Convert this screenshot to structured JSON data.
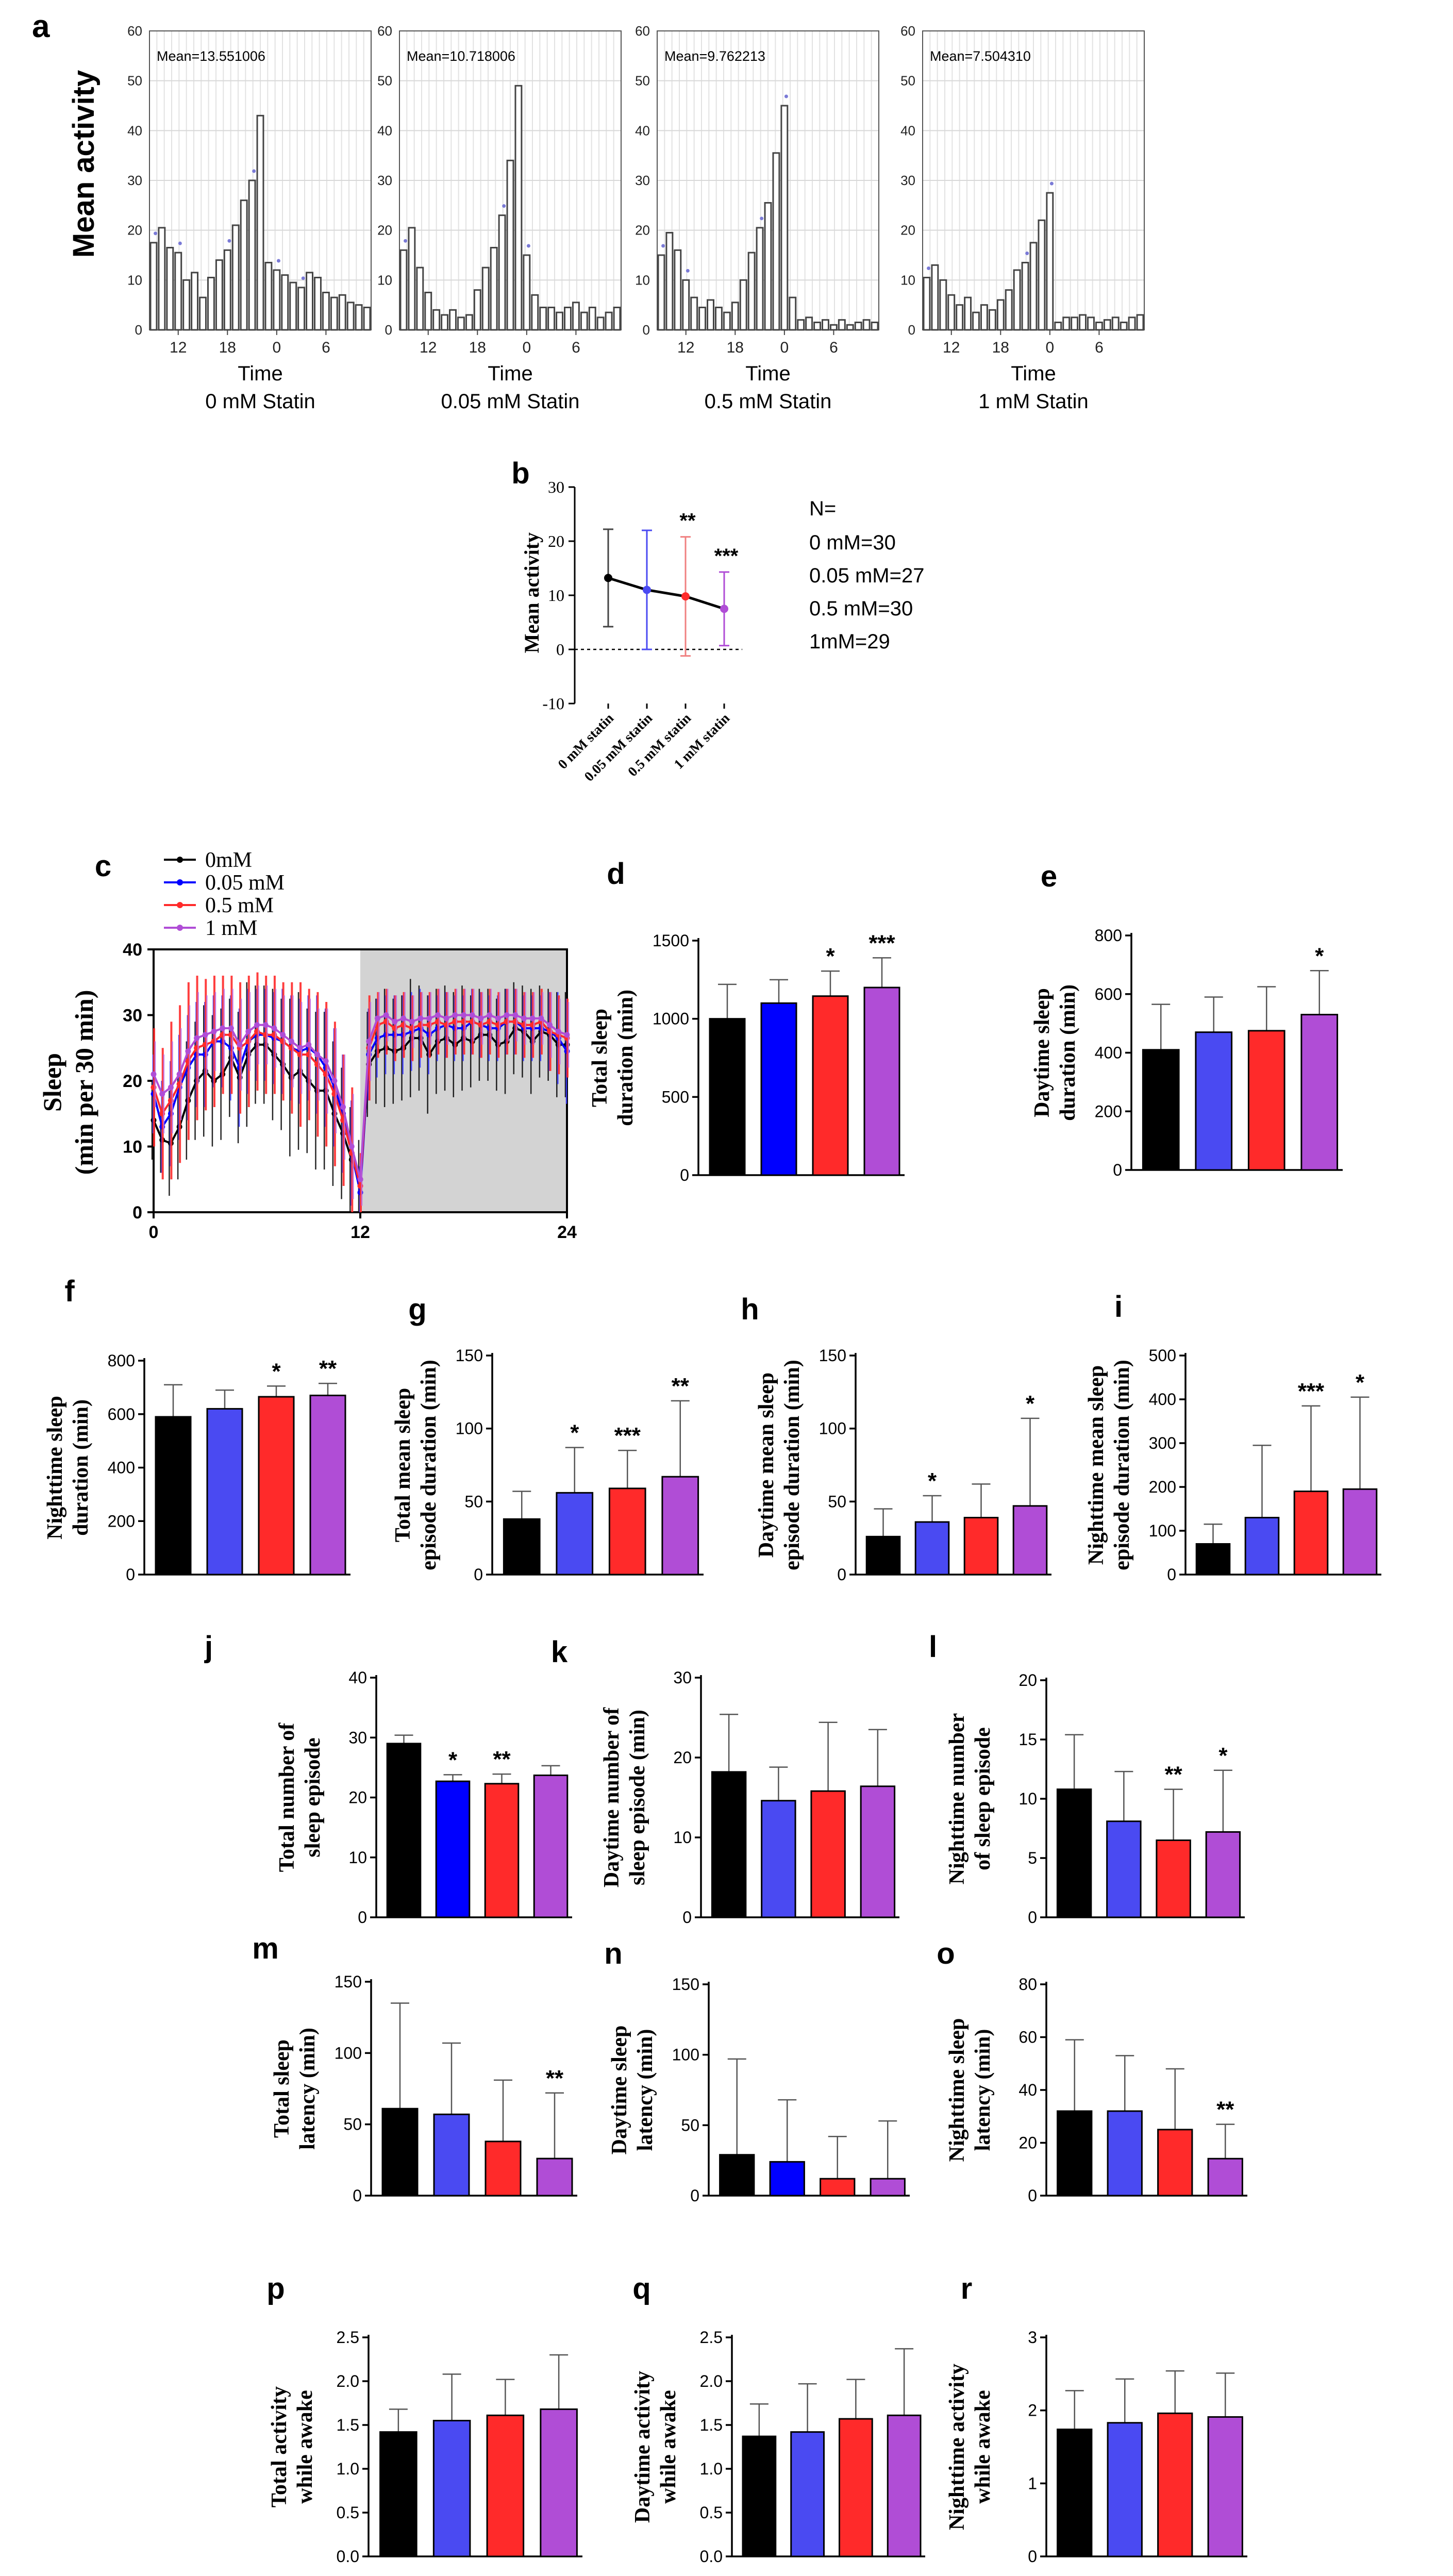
{
  "colors": {
    "c0": "#000000",
    "c1": "#0000FF",
    "c2": "#FF2A2A",
    "c3": "#B04DD6",
    "c1light": "#4A4AF2",
    "night": "#D3D3D3",
    "pinkErr": "#E0407A"
  },
  "groups": [
    "0 mM",
    "0.05 mM",
    "0.5 mM",
    "1 mM"
  ],
  "panel_a": {
    "letter": "a",
    "ylabel": "Mean activity",
    "xlabel": "Time",
    "charts": [
      {
        "subtitle": "0 mM Statin",
        "mean_text": "Mean=13.551006",
        "values": [
          17.5,
          20.5,
          16.5,
          15.5,
          10,
          11.5,
          6.5,
          10.5,
          14,
          16,
          21,
          26,
          30,
          43,
          13.5,
          12,
          11,
          9.5,
          8.5,
          11.5,
          10.5,
          7.5,
          6.5,
          7,
          5.5,
          5,
          4.5
        ]
      },
      {
        "subtitle": "0.05 mM Statin",
        "mean_text": "Mean=10.718006",
        "values": [
          16,
          20.5,
          12.5,
          7.5,
          4,
          3,
          4,
          2.5,
          3,
          8,
          12.5,
          16.5,
          23,
          34,
          49,
          15,
          7,
          4.5,
          4.5,
          3.5,
          4.5,
          5.5,
          3.5,
          4.5,
          2.5,
          3.5,
          4.5
        ]
      },
      {
        "subtitle": "0.5 mM Statin",
        "mean_text": "Mean=9.762213",
        "values": [
          15,
          19.5,
          16,
          10,
          6.5,
          4.5,
          6,
          4.5,
          3.5,
          5.5,
          10,
          15.5,
          20.5,
          25.5,
          35.5,
          45,
          6.5,
          2,
          2.5,
          1.5,
          2,
          1,
          2,
          1,
          1.5,
          2,
          1.5
        ]
      },
      {
        "subtitle": "1 mM Statin",
        "mean_text": "Mean=7.504310",
        "values": [
          10.5,
          13,
          10,
          7,
          5,
          6.5,
          3.5,
          5,
          4,
          6,
          8,
          12,
          13.5,
          17.5,
          22,
          27.5,
          1.5,
          2.5,
          2.5,
          3,
          2.5,
          1.5,
          2,
          2.5,
          1.5,
          2.5,
          3
        ]
      }
    ],
    "ylim": [
      0,
      60
    ],
    "yticks": [
      "0",
      "10",
      "20",
      "30",
      "40",
      "50",
      "60"
    ],
    "xticks": [
      "12",
      "18",
      "0",
      "6"
    ]
  },
  "panel_b": {
    "letter": "b",
    "ylabel": "Mean activity",
    "ylim": [
      -10,
      30
    ],
    "yticks": [
      "-10",
      "0",
      "10",
      "20",
      "30"
    ],
    "categories": [
      "0 mM statin",
      "0.05 mM statin",
      "0.5 mM statin",
      "1 mM statin"
    ],
    "means": [
      13.2,
      11.0,
      9.8,
      7.5
    ],
    "errors": [
      9.0,
      11.0,
      11.0,
      6.8
    ],
    "sig": [
      "",
      "",
      "**",
      "***"
    ],
    "n_title": "N=",
    "n_lines": [
      "0 mM=30",
      "0.05 mM=27",
      "0.5 mM=30",
      "1mM=29"
    ]
  },
  "panel_c": {
    "letter": "c",
    "ylabel_line1": "Sleep",
    "ylabel_line2": "(min per 30 min)",
    "xlim": [
      0,
      24
    ],
    "ylim": [
      0,
      40
    ],
    "xticks": [
      "0",
      "12",
      "24"
    ],
    "yticks": [
      "0",
      "10",
      "20",
      "30",
      "40"
    ],
    "legend": [
      "0mM",
      "0.05 mM",
      "0.5 mM",
      "1 mM"
    ],
    "night_start": 12,
    "series": [
      {
        "name": "0mM",
        "values": [
          14,
          11,
          10.5,
          13,
          17,
          20,
          21.5,
          20,
          21,
          23.5,
          20.5,
          24,
          25.5,
          25.5,
          24,
          22.5,
          20.5,
          21.5,
          20,
          18.5,
          18.5,
          15,
          12,
          8,
          5,
          22.5,
          24.5,
          25,
          24.5,
          25,
          26.5,
          26.5,
          24,
          26,
          26.5,
          25.5,
          26.5,
          26,
          27,
          27,
          25.5,
          26,
          28,
          27.5,
          26,
          27.5,
          27,
          25.5,
          25.5
        ],
        "errors": [
          6,
          5,
          8,
          8,
          9,
          9,
          10,
          10,
          10,
          9,
          10,
          11,
          9,
          9,
          10,
          10,
          12,
          12,
          11,
          12,
          12,
          11,
          10,
          8,
          6,
          8,
          8,
          9,
          8,
          8,
          9,
          8,
          9,
          8,
          8,
          8,
          8,
          7,
          7,
          7,
          7,
          8,
          7,
          7,
          8,
          7,
          7,
          8,
          8
        ]
      },
      {
        "name": "0.05 mM",
        "values": [
          18,
          13,
          15,
          19,
          22,
          24,
          24,
          26,
          26,
          25,
          22,
          26,
          27,
          27,
          26.5,
          26,
          25,
          24.5,
          25,
          24,
          22,
          19,
          15,
          9,
          3,
          24,
          26.5,
          27,
          27,
          27,
          27.5,
          28,
          27,
          28,
          28.5,
          28,
          28,
          29,
          28.5,
          28,
          28,
          29,
          29,
          28,
          28,
          28,
          27.5,
          26.5,
          24.5
        ],
        "errors": [
          6,
          7,
          8,
          8,
          8,
          8,
          8,
          7,
          7,
          8,
          9,
          8,
          7,
          7,
          7,
          8,
          8,
          8,
          8,
          9,
          9,
          9,
          9,
          8,
          4,
          7,
          6,
          6,
          6,
          6,
          6,
          6,
          6,
          5,
          5,
          5,
          5,
          5,
          5,
          5,
          5,
          5,
          5,
          5,
          5,
          5,
          6,
          7,
          8
        ]
      },
      {
        "name": "0.5 mM",
        "values": [
          19,
          15,
          17,
          19.5,
          23,
          25,
          25.5,
          26,
          27,
          27,
          25,
          26,
          27.5,
          27,
          27,
          26,
          25,
          24,
          24,
          22.5,
          21,
          18,
          14,
          9,
          4,
          25,
          28.5,
          29,
          28,
          28.5,
          28,
          28.5,
          28.5,
          29,
          28.5,
          29,
          29,
          29,
          28.5,
          29,
          28.5,
          29,
          29,
          28.5,
          28.5,
          29,
          27.5,
          27,
          26.5
        ],
        "errors": [
          9,
          10,
          12,
          12,
          12,
          11,
          10,
          10,
          9,
          9,
          10,
          10,
          9,
          9,
          9,
          9,
          10,
          11,
          10,
          11,
          11,
          11,
          10,
          10,
          5,
          8,
          5,
          5,
          5,
          5,
          5,
          5,
          5,
          5,
          5,
          5,
          5,
          5,
          5,
          5,
          5,
          5,
          5,
          5,
          5,
          5,
          6,
          6,
          6
        ]
      },
      {
        "name": "1 mM",
        "values": [
          21,
          18,
          19,
          21,
          24.5,
          26.5,
          27,
          27.5,
          28,
          28,
          25.5,
          27.5,
          28.5,
          28.5,
          28,
          27,
          26,
          25,
          25.5,
          24,
          23,
          20,
          16,
          10,
          5,
          26,
          29.5,
          30,
          29,
          29.5,
          29,
          29.5,
          29.5,
          30,
          29.5,
          30,
          30,
          30,
          29.5,
          30,
          29.5,
          30,
          30,
          29.5,
          29.5,
          29.5,
          28.5,
          27.5,
          27
        ],
        "errors": [
          5,
          6,
          7,
          7,
          7,
          7,
          6,
          6,
          6,
          6,
          7,
          6,
          6,
          6,
          6,
          6,
          7,
          7,
          7,
          7,
          8,
          8,
          8,
          8,
          4,
          6,
          4,
          4,
          4,
          4,
          4,
          4,
          4,
          4,
          4,
          4,
          4,
          4,
          4,
          4,
          4,
          4,
          4,
          4,
          4,
          4,
          5,
          5,
          5
        ]
      }
    ]
  },
  "bars": [
    {
      "letter": "d",
      "ylabel": [
        "Total sleep",
        "duration (min)"
      ],
      "ylim": [
        0,
        1500
      ],
      "yticks": [
        "0",
        "500",
        "1000",
        "1500"
      ],
      "values": [
        1000,
        1100,
        1145,
        1200
      ],
      "errors": [
        220,
        150,
        160,
        190
      ],
      "sig": [
        "",
        "",
        "*",
        "***"
      ]
    },
    {
      "letter": "e",
      "ylabel": [
        "Daytime sleep",
        "duration (min)"
      ],
      "ylim": [
        0,
        800
      ],
      "yticks": [
        "0",
        "200",
        "400",
        "600",
        "800"
      ],
      "values": [
        410,
        470,
        475,
        530
      ],
      "errors": [
        155,
        120,
        150,
        150
      ],
      "sig": [
        "",
        "",
        "",
        "*"
      ]
    },
    {
      "letter": "f",
      "ylabel": [
        "Nighttime sleep",
        "duration (min)"
      ],
      "ylim": [
        0,
        800
      ],
      "yticks": [
        "0",
        "200",
        "400",
        "600",
        "800"
      ],
      "values": [
        590,
        620,
        665,
        670
      ],
      "errors": [
        120,
        70,
        40,
        45
      ],
      "sig": [
        "",
        "",
        "*",
        "**"
      ]
    },
    {
      "letter": "g",
      "ylabel": [
        "Total mean sleep",
        "episode duration (min)"
      ],
      "ylim": [
        0,
        150
      ],
      "yticks": [
        "0",
        "50",
        "100",
        "150"
      ],
      "values": [
        38,
        56,
        59,
        67
      ],
      "errors": [
        19,
        31,
        26,
        52
      ],
      "sig": [
        "",
        "*",
        "***",
        "**"
      ]
    },
    {
      "letter": "h",
      "ylabel": [
        "Daytime mean sleep",
        "episode duration (min)"
      ],
      "ylim": [
        0,
        150
      ],
      "yticks": [
        "0",
        "50",
        "100",
        "150"
      ],
      "values": [
        26,
        36,
        39,
        47
      ],
      "errors": [
        19,
        18,
        23,
        60
      ],
      "sig": [
        "",
        "*",
        "",
        "*"
      ]
    },
    {
      "letter": "i",
      "ylabel": [
        "Nighttime mean sleep",
        "episode duration (min)"
      ],
      "ylim": [
        0,
        500
      ],
      "yticks": [
        "0",
        "100",
        "200",
        "300",
        "400",
        "500"
      ],
      "values": [
        70,
        130,
        190,
        195
      ],
      "errors": [
        45,
        165,
        195,
        210
      ],
      "sig": [
        "",
        "",
        "***",
        "*"
      ]
    },
    {
      "letter": "j",
      "ylabel": [
        "Total number of",
        "sleep episode"
      ],
      "ylim": [
        0,
        40
      ],
      "yticks": [
        "0",
        "10",
        "20",
        "30",
        "40"
      ],
      "values": [
        29,
        22.7,
        22.3,
        23.7
      ],
      "errors": [
        1.4,
        1.1,
        1.6,
        1.6
      ],
      "sig": [
        "",
        "*",
        "**",
        ""
      ]
    },
    {
      "letter": "k",
      "ylabel": [
        "Daytime number of",
        "sleep  episode (min)"
      ],
      "ylim": [
        0,
        30
      ],
      "yticks": [
        "0",
        "10",
        "20",
        "30"
      ],
      "values": [
        18.2,
        14.6,
        15.8,
        16.4
      ],
      "errors": [
        7.2,
        4.2,
        8.6,
        7.1
      ],
      "sig": [
        "",
        "",
        "",
        ""
      ]
    },
    {
      "letter": "l",
      "ylabel": [
        "Nighttime number",
        "of sleep episode"
      ],
      "ylim": [
        0,
        20
      ],
      "yticks": [
        "0",
        "5",
        "10",
        "15",
        "20"
      ],
      "values": [
        10.8,
        8.1,
        6.5,
        7.2
      ],
      "errors": [
        4.6,
        4.2,
        4.3,
        5.2
      ],
      "sig": [
        "",
        "",
        "**",
        "*"
      ]
    },
    {
      "letter": "m",
      "ylabel": [
        "Total sleep",
        "latency (min)"
      ],
      "ylim": [
        0,
        150
      ],
      "yticks": [
        "0",
        "50",
        "100",
        "150"
      ],
      "values": [
        61,
        57,
        38,
        26
      ],
      "errors": [
        74,
        50,
        43,
        46
      ],
      "sig": [
        "",
        "",
        "",
        "**"
      ]
    },
    {
      "letter": "n",
      "ylabel": [
        "Daytime sleep",
        "latency (min)"
      ],
      "ylim": [
        0,
        150
      ],
      "yticks": [
        "0",
        "50",
        "100",
        "150"
      ],
      "values": [
        29,
        24,
        12,
        12
      ],
      "errors": [
        68,
        44,
        30,
        41
      ],
      "sig": [
        "",
        "",
        "",
        ""
      ]
    },
    {
      "letter": "o",
      "ylabel": [
        "Nighttime sleep",
        "latency (min)"
      ],
      "ylim": [
        0,
        80
      ],
      "yticks": [
        "0",
        "20",
        "40",
        "60",
        "80"
      ],
      "values": [
        32,
        32,
        25,
        14
      ],
      "errors": [
        27,
        21,
        23,
        13
      ],
      "sig": [
        "",
        "",
        "",
        "**"
      ]
    },
    {
      "letter": "p",
      "ylabel": [
        "Total activity",
        "while awake"
      ],
      "ylim": [
        0,
        2.5
      ],
      "yticks": [
        "0.0",
        "0.5",
        "1.0",
        "1.5",
        "2.0",
        "2.5"
      ],
      "values": [
        1.42,
        1.55,
        1.61,
        1.68
      ],
      "errors": [
        0.26,
        0.53,
        0.41,
        0.62
      ],
      "sig": [
        "",
        "",
        "",
        ""
      ]
    },
    {
      "letter": "q",
      "ylabel": [
        "Daytime activity",
        "while awake"
      ],
      "ylim": [
        0,
        2.5
      ],
      "yticks": [
        "0.0",
        "0.5",
        "1.0",
        "1.5",
        "2.0",
        "2.5"
      ],
      "values": [
        1.37,
        1.42,
        1.57,
        1.61
      ],
      "errors": [
        0.37,
        0.55,
        0.45,
        0.76
      ],
      "sig": [
        "",
        "",
        "",
        ""
      ]
    },
    {
      "letter": "r",
      "ylabel": [
        "Nighttime activity",
        "while awake"
      ],
      "ylim": [
        0,
        3
      ],
      "yticks": [
        "0",
        "1",
        "2",
        "3"
      ],
      "values": [
        1.74,
        1.83,
        1.96,
        1.91
      ],
      "errors": [
        0.53,
        0.6,
        0.58,
        0.6
      ],
      "sig": [
        "",
        "",
        "",
        ""
      ]
    }
  ]
}
